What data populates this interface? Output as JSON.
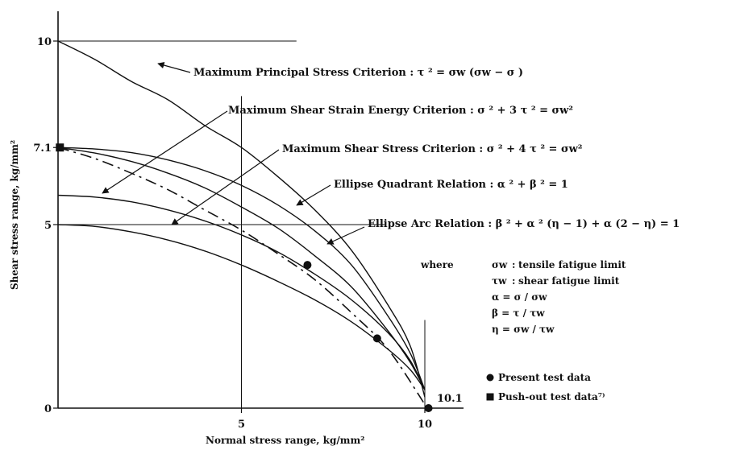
{
  "chart_data": {
    "type": "line",
    "xlabel": "Normal stress range, kg/mm²",
    "ylabel": "Shear stress range, kg/mm²",
    "xlim": [
      0,
      11
    ],
    "ylim": [
      0,
      11
    ],
    "x_ticks": [
      {
        "value": 5,
        "label": "5"
      },
      {
        "value": 10,
        "label": "10"
      }
    ],
    "y_ticks": [
      {
        "value": 0,
        "label": "0"
      },
      {
        "value": 5,
        "label": "5"
      },
      {
        "value": 7.1,
        "label": "7.1"
      },
      {
        "value": 10,
        "label": "10"
      }
    ],
    "annotations": {
      "point_label": "10.1",
      "where": "where"
    },
    "curves": [
      {
        "label": "Maximum Principal Stress Criterion : τ ² = σw (σw − σ )",
        "style": "solid",
        "points": [
          [
            0,
            10.0
          ],
          [
            1,
            9.5
          ],
          [
            2,
            8.9
          ],
          [
            3,
            8.4
          ],
          [
            4,
            7.7
          ],
          [
            5,
            7.1
          ],
          [
            6,
            6.3
          ],
          [
            7,
            5.4
          ],
          [
            8,
            4.3
          ],
          [
            9,
            2.8
          ],
          [
            9.6,
            1.7
          ],
          [
            10,
            0.3
          ]
        ]
      },
      {
        "label": "Ellipse Quadrant Relation : α ² + β ² = 1",
        "style": "solid",
        "points": [
          [
            0,
            7.1
          ],
          [
            1,
            7.06
          ],
          [
            2,
            6.96
          ],
          [
            3,
            6.76
          ],
          [
            4,
            6.47
          ],
          [
            5,
            6.07
          ],
          [
            6,
            5.53
          ],
          [
            7,
            4.83
          ],
          [
            8,
            3.9
          ],
          [
            9,
            2.5
          ],
          [
            9.6,
            1.5
          ],
          [
            10,
            0.5
          ]
        ]
      },
      {
        "label": "Ellipse Arc Relation : β ² + α ² (η − 1) + α (2 − η) = 1",
        "style": "solid",
        "points": [
          [
            0,
            7.1
          ],
          [
            1,
            6.95
          ],
          [
            2,
            6.72
          ],
          [
            3,
            6.4
          ],
          [
            4,
            6.0
          ],
          [
            5,
            5.48
          ],
          [
            6,
            4.9
          ],
          [
            7,
            4.15
          ],
          [
            8,
            3.3
          ],
          [
            9,
            2.1
          ],
          [
            9.6,
            1.25
          ],
          [
            10,
            0.5
          ]
        ]
      },
      {
        "label": "Maximum Shear Strain Energy Criterion : σ ² + 3 τ ² = σw²",
        "style": "solid",
        "points": [
          [
            0,
            5.8
          ],
          [
            1,
            5.75
          ],
          [
            2,
            5.62
          ],
          [
            3,
            5.4
          ],
          [
            4,
            5.1
          ],
          [
            5,
            4.72
          ],
          [
            6,
            4.25
          ],
          [
            7,
            3.65
          ],
          [
            8,
            2.95
          ],
          [
            9,
            2.05
          ],
          [
            9.6,
            1.3
          ],
          [
            10,
            0.5
          ]
        ]
      },
      {
        "label": "Maximum Shear Stress Criterion : σ ² + 4 τ ² = σw²",
        "style": "solid",
        "points": [
          [
            0,
            5.0
          ],
          [
            1,
            4.95
          ],
          [
            2,
            4.8
          ],
          [
            3,
            4.58
          ],
          [
            4,
            4.28
          ],
          [
            5,
            3.9
          ],
          [
            6,
            3.45
          ],
          [
            7,
            2.95
          ],
          [
            8,
            2.35
          ],
          [
            9,
            1.6
          ],
          [
            9.6,
            1.05
          ],
          [
            10,
            0.5
          ]
        ]
      },
      {
        "label": "",
        "style": "dashed",
        "points": [
          [
            0,
            7.1
          ],
          [
            1,
            6.8
          ],
          [
            2,
            6.4
          ],
          [
            3,
            5.95
          ],
          [
            4,
            5.4
          ],
          [
            5,
            4.85
          ],
          [
            6,
            4.2
          ],
          [
            7,
            3.5
          ],
          [
            8,
            2.6
          ],
          [
            9,
            1.6
          ],
          [
            10,
            0.1
          ]
        ]
      }
    ],
    "series": [
      {
        "name": "Present test data",
        "marker": "circle",
        "points": [
          [
            6.8,
            3.9
          ],
          [
            8.7,
            1.9
          ],
          [
            10.1,
            0.0
          ]
        ]
      },
      {
        "name": "Push-out test data⁷⁾",
        "marker": "square",
        "points": [
          [
            0.05,
            7.1
          ]
        ]
      }
    ],
    "guide_lines": [
      {
        "from": [
          0,
          10
        ],
        "to": [
          6.5,
          10
        ]
      },
      {
        "from": [
          0,
          5
        ],
        "to": [
          8.9,
          5
        ]
      },
      {
        "from": [
          5,
          0
        ],
        "to": [
          5,
          8.5
        ]
      },
      {
        "from": [
          10,
          0
        ],
        "to": [
          10,
          2.4
        ]
      }
    ],
    "definitions": [
      {
        "sym": "σw",
        "sep": ":",
        "text": "tensile fatigue limit"
      },
      {
        "sym": "τw",
        "sep": ":",
        "text": "shear fatigue limit"
      },
      {
        "sym": "α = σ / σw",
        "sep": "",
        "text": ""
      },
      {
        "sym": "β = τ / τw",
        "sep": "",
        "text": ""
      },
      {
        "sym": "η = σw / τw",
        "sep": "",
        "text": ""
      }
    ]
  }
}
